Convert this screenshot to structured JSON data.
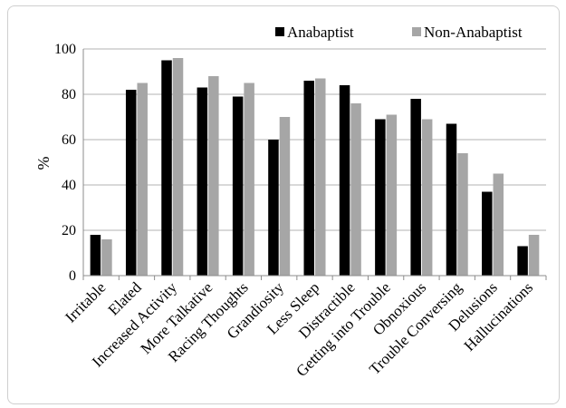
{
  "chart_data": {
    "type": "bar",
    "ylabel": "%",
    "ylim": [
      0,
      100
    ],
    "yticks": [
      0,
      20,
      40,
      60,
      80,
      100
    ],
    "grid": true,
    "legend_position": "top-right",
    "categories": [
      "Irritable",
      "Elated",
      "Increased Activity",
      "More Talkative",
      "Racing Thoughts",
      "Grandiosity",
      "Less Sleep",
      "Distractible",
      "Getting into Trouble",
      "Obnoxious",
      "Trouble Conversing",
      "Delusions",
      "Hallucinations"
    ],
    "series": [
      {
        "name": "Anabaptist",
        "color": "#000000",
        "values": [
          18,
          82,
          95,
          83,
          79,
          60,
          86,
          84,
          69,
          78,
          67,
          37,
          13
        ]
      },
      {
        "name": "Non-Anabaptist",
        "color": "#a6a6a6",
        "values": [
          16,
          85,
          96,
          88,
          85,
          70,
          87,
          76,
          71,
          69,
          54,
          45,
          18
        ]
      }
    ]
  }
}
